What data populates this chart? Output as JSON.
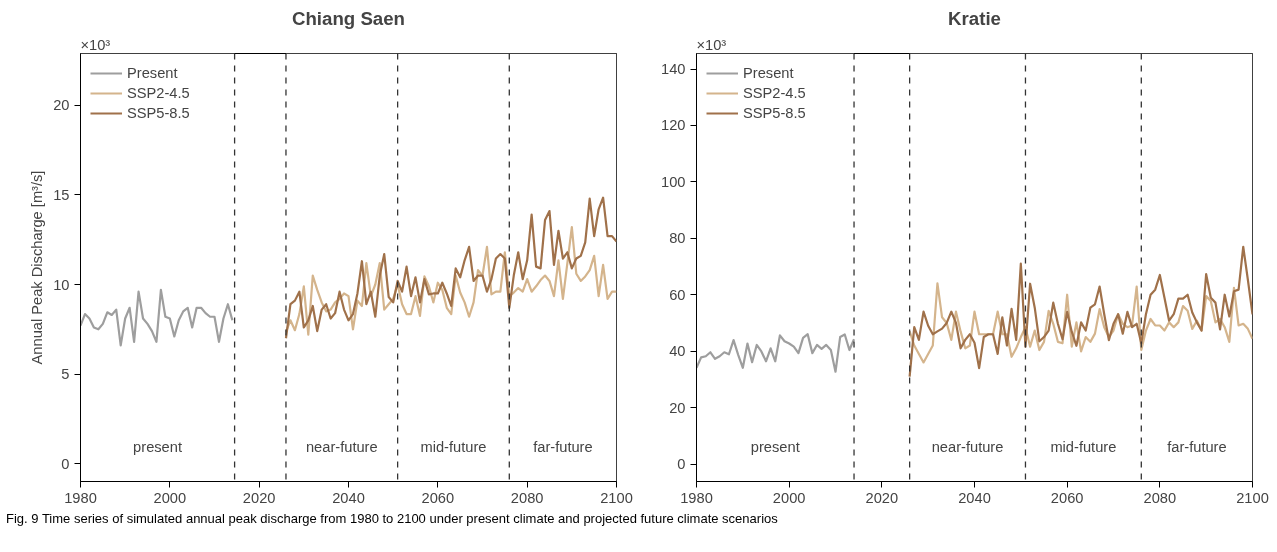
{
  "chart_data": [
    {
      "type": "line",
      "title": "Chiang Saen",
      "ylabel": "Annual Peak Discharge [m³/s]",
      "xlim": [
        1980,
        2100
      ],
      "xticks": [
        1980,
        2000,
        2020,
        2040,
        2060,
        2080,
        2100
      ],
      "ylim": [
        -1,
        22.9
      ],
      "yticks": [
        0,
        5,
        10,
        15,
        20
      ],
      "grid": false,
      "legend": "top left",
      "line_style": "solid",
      "marker": "none",
      "series": [
        {
          "name": "Present",
          "color": "#9e9e9e",
          "x": [
            1980,
            1981,
            1982,
            1983,
            1984,
            1985,
            1986,
            1987,
            1988,
            1989,
            1990,
            1991,
            1992,
            1993,
            1994,
            1995,
            1996,
            1997,
            1998,
            1999,
            2000,
            2001,
            2002,
            2003,
            2004,
            2005,
            2006,
            2007,
            2008,
            2009,
            2010,
            2011,
            2012,
            2013,
            2014
          ],
          "values": [
            7.7,
            8.35,
            8.1,
            7.6,
            7.5,
            7.8,
            8.45,
            8.3,
            8.6,
            6.6,
            8.1,
            8.7,
            6.8,
            9.6,
            8.1,
            7.8,
            7.4,
            6.8,
            9.7,
            8.2,
            8.1,
            7.1,
            8.0,
            8.5,
            8.7,
            7.6,
            8.7,
            8.7,
            8.4,
            8.2,
            8.2,
            6.8,
            8.1,
            8.9,
            8.0
          ]
        },
        {
          "name": "SSP2-4.5",
          "color": "#d4b48c",
          "x": [
            2026,
            2027,
            2028,
            2029,
            2030,
            2031,
            2032,
            2033,
            2034,
            2035,
            2036,
            2037,
            2038,
            2039,
            2040,
            2041,
            2042,
            2043,
            2044,
            2045,
            2046,
            2047,
            2048,
            2049,
            2050,
            2051,
            2052,
            2053,
            2054,
            2055,
            2056,
            2057,
            2058,
            2059,
            2060,
            2061,
            2062,
            2063,
            2064,
            2065,
            2066,
            2067,
            2068,
            2069,
            2070,
            2071,
            2072,
            2073,
            2074,
            2075,
            2076,
            2077,
            2078,
            2079,
            2080,
            2081,
            2082,
            2083,
            2084,
            2085,
            2086,
            2087,
            2088,
            2089,
            2090,
            2091,
            2092,
            2093,
            2094,
            2095,
            2096,
            2097,
            2098,
            2099,
            2100
          ],
          "values": [
            7.35,
            8.0,
            7.45,
            8.35,
            9.9,
            7.2,
            10.5,
            9.7,
            9.0,
            8.5,
            8.6,
            9.0,
            9.2,
            9.5,
            9.35,
            7.5,
            9.1,
            8.8,
            11.2,
            9.35,
            10.0,
            11.2,
            8.6,
            8.9,
            9.2,
            10.0,
            8.9,
            8.35,
            8.35,
            9.35,
            8.25,
            10.45,
            9.9,
            9.0,
            10.1,
            9.7,
            8.7,
            8.35,
            10.5,
            9.55,
            9.0,
            8.2,
            9.0,
            10.8,
            10.5,
            12.1,
            9.45,
            9.6,
            9.6,
            11.8,
            9.35,
            9.55,
            9.8,
            9.6,
            10.3,
            9.6,
            9.9,
            10.25,
            10.5,
            10.2,
            9.35,
            11.35,
            9.2,
            11.2,
            13.2,
            10.6,
            10.2,
            10.45,
            10.8,
            11.6,
            9.35,
            11.1,
            9.2,
            9.6,
            9.6
          ]
        },
        {
          "name": "SSP5-8.5",
          "color": "#a0714a",
          "x": [
            2026,
            2027,
            2028,
            2029,
            2030,
            2031,
            2032,
            2033,
            2034,
            2035,
            2036,
            2037,
            2038,
            2039,
            2040,
            2041,
            2042,
            2043,
            2044,
            2045,
            2046,
            2047,
            2048,
            2049,
            2050,
            2051,
            2052,
            2053,
            2054,
            2055,
            2056,
            2057,
            2058,
            2059,
            2060,
            2061,
            2062,
            2063,
            2064,
            2065,
            2066,
            2067,
            2068,
            2069,
            2070,
            2071,
            2072,
            2073,
            2074,
            2075,
            2076,
            2077,
            2078,
            2079,
            2080,
            2081,
            2082,
            2083,
            2084,
            2085,
            2086,
            2087,
            2088,
            2089,
            2090,
            2091,
            2092,
            2093,
            2094,
            2095,
            2096,
            2097,
            2098,
            2099,
            2100
          ],
          "values": [
            7.0,
            8.9,
            9.1,
            9.6,
            7.6,
            8.0,
            8.8,
            7.4,
            8.6,
            8.9,
            8.1,
            8.4,
            9.6,
            8.6,
            8.0,
            8.35,
            9.5,
            11.3,
            8.9,
            9.6,
            8.2,
            10.5,
            11.7,
            9.3,
            9.0,
            10.2,
            9.6,
            11.0,
            9.35,
            10.4,
            9.0,
            10.3,
            9.45,
            9.5,
            9.5,
            10.1,
            9.5,
            8.8,
            10.9,
            10.4,
            11.35,
            12.1,
            10.2,
            10.5,
            10.5,
            9.6,
            10.3,
            11.45,
            11.7,
            11.45,
            8.7,
            10.5,
            11.8,
            10.3,
            11.35,
            13.9,
            11.0,
            10.9,
            13.6,
            14.1,
            11.1,
            13.0,
            11.45,
            11.8,
            10.9,
            11.45,
            11.6,
            12.35,
            14.8,
            12.7,
            14.2,
            14.85,
            12.7,
            12.7,
            12.4
          ]
        }
      ],
      "ref_lines": [
        {
          "axis": "x",
          "value": 2014.5,
          "color": "#333333",
          "line_style": "dashed"
        },
        {
          "axis": "x",
          "value": 2026,
          "color": "#333333",
          "line_style": "dashed"
        },
        {
          "axis": "x",
          "value": 2051,
          "color": "#333333",
          "line_style": "dashed"
        },
        {
          "axis": "x",
          "value": 2076,
          "color": "#333333",
          "line_style": "dashed"
        }
      ],
      "bands": [
        {
          "axis": "x",
          "from": 1980,
          "to": 2014.5,
          "label": "present",
          "color": "#ffffff"
        },
        {
          "axis": "x",
          "from": 2026,
          "to": 2051,
          "label": "near-future",
          "color": "#ffffff"
        },
        {
          "axis": "x",
          "from": 2051,
          "to": 2076,
          "label": "mid-future",
          "color": "#ffffff"
        },
        {
          "axis": "x",
          "from": 2076,
          "to": 2100,
          "label": "far-future",
          "color": "#ffffff"
        }
      ],
      "annotations": [
        "×10³"
      ]
    },
    {
      "type": "line",
      "title": "Kratie",
      "xlim": [
        1980,
        2100
      ],
      "xticks": [
        1980,
        2000,
        2020,
        2040,
        2060,
        2080,
        2100
      ],
      "ylim": [
        -6.2,
        145.5
      ],
      "yticks": [
        0,
        20,
        40,
        60,
        80,
        100,
        120,
        140
      ],
      "grid": false,
      "legend": "top left",
      "line_style": "solid",
      "marker": "none",
      "series": [
        {
          "name": "Present",
          "color": "#9e9e9e",
          "x": [
            1980,
            1981,
            1982,
            1983,
            1984,
            1985,
            1986,
            1987,
            1988,
            1989,
            1990,
            1991,
            1992,
            1993,
            1994,
            1995,
            1996,
            1997,
            1998,
            1999,
            2000,
            2001,
            2002,
            2003,
            2004,
            2005,
            2006,
            2007,
            2008,
            2009,
            2010,
            2011,
            2012,
            2013,
            2014
          ],
          "values": [
            34.1,
            37.8,
            38.2,
            39.6,
            37.3,
            38.2,
            39.6,
            38.9,
            43.9,
            38.7,
            34.1,
            42.7,
            36.1,
            42.2,
            39.9,
            36.4,
            41.0,
            36.4,
            45.6,
            43.5,
            42.7,
            41.6,
            39.3,
            44.7,
            46.0,
            39.3,
            42.2,
            40.8,
            42.2,
            40.4,
            32.7,
            45.0,
            45.9,
            40.4,
            44.2
          ]
        },
        {
          "name": "SSP2-4.5",
          "color": "#d4b48c",
          "x": [
            2026,
            2027,
            2028,
            2029,
            2030,
            2031,
            2032,
            2033,
            2034,
            2035,
            2036,
            2037,
            2038,
            2039,
            2040,
            2041,
            2042,
            2043,
            2044,
            2045,
            2046,
            2047,
            2048,
            2049,
            2050,
            2051,
            2052,
            2053,
            2054,
            2055,
            2056,
            2057,
            2058,
            2059,
            2060,
            2061,
            2062,
            2063,
            2064,
            2065,
            2066,
            2067,
            2068,
            2069,
            2070,
            2071,
            2072,
            2073,
            2074,
            2075,
            2076,
            2077,
            2078,
            2079,
            2080,
            2081,
            2082,
            2083,
            2084,
            2085,
            2086,
            2087,
            2088,
            2089,
            2090,
            2091,
            2092,
            2093,
            2094,
            2095,
            2096,
            2097,
            2098,
            2099,
            2100
          ],
          "values": [
            47,
            42,
            39,
            36,
            39,
            42,
            64,
            52,
            50,
            44,
            54,
            47,
            41,
            42,
            54,
            46,
            46,
            46,
            46,
            54,
            46,
            46,
            38,
            41,
            45,
            48.5,
            41.6,
            47.3,
            40.4,
            43.3,
            54.3,
            49.7,
            43.3,
            42.8,
            60.0,
            41.6,
            50.2,
            39.9,
            45.0,
            43.3,
            46.2,
            54.9,
            48.5,
            45.0,
            47.3,
            53.1,
            49.7,
            48.5,
            49.1,
            62.9,
            40.4,
            47.3,
            51.4,
            49.1,
            49.1,
            47.3,
            50.2,
            48.5,
            50.2,
            56.0,
            54.3,
            47.9,
            50.8,
            47.3,
            59.5,
            57.8,
            50.2,
            51.4,
            48.5,
            43.3,
            62.4,
            49.1,
            49.7,
            47.9,
            44.4
          ]
        },
        {
          "name": "SSP5-8.5",
          "color": "#a0714a",
          "x": [
            2026,
            2027,
            2028,
            2029,
            2030,
            2031,
            2032,
            2033,
            2034,
            2035,
            2036,
            2037,
            2038,
            2039,
            2040,
            2041,
            2042,
            2043,
            2044,
            2045,
            2046,
            2047,
            2048,
            2049,
            2050,
            2051,
            2052,
            2053,
            2054,
            2055,
            2056,
            2057,
            2058,
            2059,
            2060,
            2061,
            2062,
            2063,
            2064,
            2065,
            2066,
            2067,
            2068,
            2069,
            2070,
            2071,
            2072,
            2073,
            2074,
            2075,
            2076,
            2077,
            2078,
            2079,
            2080,
            2081,
            2082,
            2083,
            2084,
            2085,
            2086,
            2087,
            2088,
            2089,
            2090,
            2091,
            2092,
            2093,
            2094,
            2095,
            2096,
            2097,
            2098,
            2099,
            2100
          ],
          "values": [
            31,
            48.5,
            44,
            54,
            49,
            46,
            47,
            48,
            50,
            54,
            50,
            41,
            44,
            46,
            43,
            34,
            45,
            46,
            46,
            39,
            52,
            42,
            55,
            44,
            71,
            41.6,
            63.9,
            55.4,
            43.5,
            45.0,
            47.3,
            57.2,
            49.7,
            44.2,
            53.9,
            46.8,
            41.9,
            50.2,
            47.3,
            55.4,
            56.6,
            62.9,
            53.1,
            43.9,
            49.7,
            53.1,
            46.2,
            53.9,
            48.5,
            49.7,
            42.8,
            53.1,
            60.0,
            61.8,
            67.0,
            58.9,
            50.8,
            53.1,
            58.6,
            58.6,
            60.0,
            53.7,
            50.2,
            47.3,
            67.3,
            58.9,
            57.2,
            47.7,
            60.0,
            52.3,
            61.2,
            61.8,
            77,
            65.3,
            53
          ]
        }
      ],
      "ref_lines": [
        {
          "axis": "x",
          "value": 2014,
          "color": "#333333",
          "line_style": "dashed"
        },
        {
          "axis": "x",
          "value": 2026,
          "color": "#333333",
          "line_style": "dashed"
        },
        {
          "axis": "x",
          "value": 2051,
          "color": "#333333",
          "line_style": "dashed"
        },
        {
          "axis": "x",
          "value": 2076,
          "color": "#333333",
          "line_style": "dashed"
        }
      ],
      "bands": [
        {
          "axis": "x",
          "from": 1980,
          "to": 2014,
          "label": "present",
          "color": "#ffffff"
        },
        {
          "axis": "x",
          "from": 2026,
          "to": 2051,
          "label": "near-future",
          "color": "#ffffff"
        },
        {
          "axis": "x",
          "from": 2051,
          "to": 2076,
          "label": "mid-future",
          "color": "#ffffff"
        },
        {
          "axis": "x",
          "from": 2076,
          "to": 2100,
          "label": "far-future",
          "color": "#ffffff"
        }
      ],
      "annotations": [
        "×10³",
        "Fig. 9 Time series of simulated annual peak discharge from 1980 to 2100 under present climate and projected future climate scenarios"
      ]
    }
  ]
}
